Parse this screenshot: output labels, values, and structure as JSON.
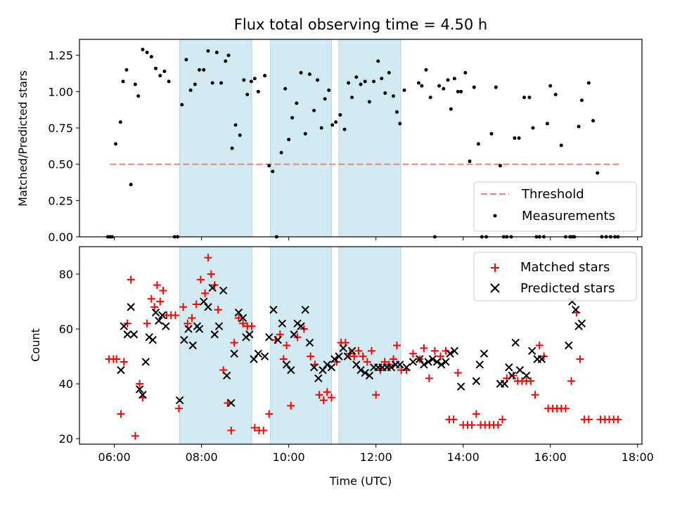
{
  "title": "Flux total observing time = 4.50 h",
  "colors": {
    "band": "#add8e6",
    "threshold": "#f08080",
    "measurements": "#000000",
    "matched": "#ff0000",
    "predicted": "#000000"
  },
  "chart_data": [
    {
      "type": "scatter",
      "panel": "top",
      "xlabel": "",
      "ylabel": "Matched/Predicted stars",
      "xlim": [
        5.2,
        18.1
      ],
      "ylim": [
        0,
        1.36
      ],
      "yticks": [
        0.0,
        0.25,
        0.5,
        0.75,
        1.0,
        1.25
      ],
      "ytick_labels": [
        "0.00",
        "0.25",
        "0.50",
        "0.75",
        "1.00",
        "1.25"
      ],
      "bands": [
        [
          7.5,
          9.15
        ],
        [
          9.58,
          10.98
        ],
        [
          11.15,
          12.57
        ]
      ],
      "threshold": {
        "name": "Threshold",
        "value": 0.5,
        "x": [
          5.9,
          17.6
        ]
      },
      "legend": {
        "position": "lower-right",
        "entries": [
          "Threshold",
          "Measurements"
        ]
      },
      "series": [
        {
          "name": "Measurements",
          "x": [
            5.85,
            5.9,
            5.95,
            6.03,
            6.14,
            6.2,
            6.28,
            6.38,
            6.48,
            6.55,
            6.65,
            6.75,
            6.85,
            6.95,
            7.05,
            7.15,
            7.25,
            7.38,
            7.45,
            7.55,
            7.65,
            7.75,
            7.85,
            7.95,
            8.05,
            8.15,
            8.25,
            8.35,
            8.45,
            8.55,
            8.62,
            8.7,
            8.78,
            8.88,
            8.97,
            9.05,
            9.14,
            9.22,
            9.3,
            9.45,
            9.55,
            9.63,
            9.72,
            9.83,
            9.92,
            10.0,
            10.08,
            10.18,
            10.28,
            10.38,
            10.48,
            10.58,
            10.66,
            10.75,
            10.83,
            10.92,
            11.0,
            11.08,
            11.18,
            11.28,
            11.37,
            11.45,
            11.55,
            11.65,
            11.75,
            11.85,
            11.95,
            12.05,
            12.13,
            12.21,
            12.3,
            12.4,
            12.48,
            12.55,
            12.65,
            12.98,
            13.05,
            13.15,
            13.25,
            13.35,
            13.45,
            13.55,
            13.65,
            13.72,
            13.8,
            13.88,
            13.95,
            14.05,
            14.15,
            14.25,
            14.35,
            14.43,
            14.53,
            14.65,
            14.75,
            14.85,
            14.93,
            15.0,
            15.1,
            15.18,
            15.28,
            15.4,
            15.52,
            15.6,
            15.68,
            15.75,
            15.85,
            15.93,
            16.0,
            16.12,
            16.25,
            16.35,
            16.45,
            16.5,
            16.55,
            16.65,
            16.72,
            16.88,
            16.98,
            17.08,
            17.18,
            17.28,
            17.38,
            17.48,
            17.55
          ],
          "y": [
            0,
            0,
            0,
            0.64,
            0.79,
            1.07,
            1.15,
            0.36,
            1.05,
            0.97,
            1.29,
            1.27,
            1.24,
            1.16,
            1.11,
            1.14,
            1.07,
            0,
            0,
            0.91,
            1.22,
            1.01,
            1.05,
            1.15,
            1.15,
            1.28,
            1.06,
            1.27,
            1.06,
            1.21,
            1.25,
            0.61,
            0.77,
            0.7,
            1.08,
            0.98,
            1.07,
            1.09,
            1.0,
            1.11,
            0.49,
            0.45,
            0,
            0.58,
            1.02,
            0.67,
            0.82,
            0.92,
            1.13,
            0.71,
            1.12,
            0.87,
            1.08,
            0.75,
            0.95,
            1.01,
            0.77,
            0.79,
            0.84,
            0.74,
            1.06,
            0.96,
            1.1,
            1.05,
            1.07,
            0.93,
            1.07,
            1.21,
            1.09,
            0.99,
            1.13,
            0.97,
            0.86,
            0.78,
            1.01,
            1.06,
            1.04,
            1.15,
            0.96,
            0,
            1.04,
            1.02,
            1.08,
            0.88,
            1.09,
            1.0,
            1.0,
            1.13,
            0.52,
            1.03,
            0.64,
            0,
            0,
            0.71,
            1.03,
            0.49,
            0,
            0,
            0,
            0.68,
            0.68,
            0.96,
            0.96,
            0.75,
            0,
            0,
            0,
            0.78,
            1.04,
            0.98,
            0.63,
            0,
            0,
            0,
            0,
            0.76,
            0.94,
            1.06,
            0.8,
            0.44,
            0,
            0,
            0,
            0,
            0
          ]
        }
      ]
    },
    {
      "type": "scatter",
      "panel": "bottom",
      "xlabel": "Time (UTC)",
      "ylabel": "Count",
      "xlim": [
        5.2,
        18.1
      ],
      "ylim": [
        18,
        90
      ],
      "yticks": [
        20,
        40,
        60,
        80
      ],
      "ytick_labels": [
        "20",
        "40",
        "60",
        "80"
      ],
      "xticks": [
        6,
        8,
        10,
        12,
        14,
        16,
        18
      ],
      "xtick_labels": [
        "06:00",
        "08:00",
        "10:00",
        "12:00",
        "14:00",
        "16:00",
        "18:00"
      ],
      "bands": [
        [
          7.5,
          9.15
        ],
        [
          9.58,
          10.98
        ],
        [
          11.15,
          12.57
        ]
      ],
      "legend": {
        "position": "upper-right",
        "entries": [
          "Matched stars",
          "Predicted stars"
        ]
      },
      "series": [
        {
          "name": "Matched stars",
          "marker": "+",
          "x": [
            5.88,
            5.98,
            6.05,
            6.15,
            6.22,
            6.3,
            6.38,
            6.48,
            6.58,
            6.65,
            6.75,
            6.85,
            6.92,
            6.98,
            7.05,
            7.12,
            7.2,
            7.3,
            7.4,
            7.48,
            7.58,
            7.68,
            7.78,
            7.88,
            7.98,
            8.08,
            8.15,
            8.22,
            8.3,
            8.38,
            8.5,
            8.6,
            8.68,
            8.75,
            8.85,
            8.95,
            9.05,
            9.15,
            9.22,
            9.32,
            9.42,
            9.55,
            9.7,
            9.8,
            9.88,
            9.95,
            10.05,
            10.2,
            10.35,
            10.5,
            10.6,
            10.7,
            10.8,
            10.88,
            10.98,
            11.1,
            11.2,
            11.3,
            11.4,
            11.5,
            11.6,
            11.7,
            11.8,
            11.9,
            12.0,
            12.1,
            12.2,
            12.3,
            12.4,
            12.48,
            12.58,
            12.7,
            12.85,
            13.0,
            13.1,
            13.22,
            13.35,
            13.48,
            13.6,
            13.68,
            13.78,
            13.88,
            14.0,
            14.1,
            14.2,
            14.3,
            14.4,
            14.5,
            14.6,
            14.7,
            14.8,
            14.9,
            15.0,
            15.15,
            15.25,
            15.35,
            15.45,
            15.55,
            15.65,
            15.75,
            15.85,
            15.95,
            16.05,
            16.15,
            16.25,
            16.35,
            16.48,
            16.6,
            16.68,
            16.78,
            16.88,
            17.15,
            17.25,
            17.35,
            17.45,
            17.55
          ],
          "y": [
            49,
            49,
            49,
            29,
            48,
            62,
            78,
            21,
            40,
            35,
            62,
            71,
            68,
            76,
            70,
            74,
            65,
            65,
            65,
            31,
            68,
            62,
            64,
            69,
            78,
            73,
            86,
            80,
            76,
            67,
            45,
            33,
            23,
            55,
            64,
            62,
            61,
            61,
            24,
            23,
            23,
            29,
            56,
            58,
            49,
            54,
            32,
            57,
            60,
            50,
            47,
            36,
            34,
            37,
            35,
            48,
            55,
            55,
            51,
            50,
            52,
            50,
            48,
            52,
            36,
            45,
            48,
            47,
            49,
            54,
            45,
            45,
            51,
            49,
            53,
            42,
            52,
            50,
            52,
            27,
            27,
            44,
            25,
            25,
            25,
            29,
            25,
            25,
            25,
            25,
            25,
            27,
            42,
            43,
            41,
            41,
            41,
            41,
            36,
            54,
            50,
            31,
            31,
            31,
            31,
            31,
            41,
            66,
            49,
            27,
            27,
            27,
            27,
            27,
            27,
            27
          ]
        },
        {
          "name": "Predicted stars",
          "marker": "x",
          "x": [
            6.15,
            6.22,
            6.3,
            6.38,
            6.45,
            6.58,
            6.65,
            6.72,
            6.8,
            6.88,
            6.95,
            7.02,
            7.1,
            7.18,
            7.5,
            7.6,
            7.7,
            7.8,
            7.9,
            7.95,
            8.05,
            8.15,
            8.25,
            8.3,
            8.4,
            8.5,
            8.58,
            8.68,
            8.75,
            8.85,
            8.95,
            9.02,
            9.1,
            9.2,
            9.3,
            9.45,
            9.55,
            9.65,
            9.75,
            9.85,
            9.95,
            10.05,
            10.12,
            10.2,
            10.28,
            10.38,
            10.48,
            10.58,
            10.68,
            10.78,
            10.88,
            10.98,
            11.05,
            11.15,
            11.25,
            11.35,
            11.45,
            11.55,
            11.65,
            11.75,
            11.85,
            11.95,
            12.05,
            12.15,
            12.25,
            12.35,
            12.45,
            12.55,
            12.7,
            12.85,
            13.0,
            13.1,
            13.2,
            13.3,
            13.4,
            13.5,
            13.6,
            13.7,
            13.8,
            13.95,
            14.3,
            14.38,
            14.48,
            14.85,
            14.95,
            15.05,
            15.12,
            15.2,
            15.3,
            15.45,
            15.58,
            15.7,
            15.8,
            16.42,
            16.5,
            16.58,
            16.65,
            16.72
          ],
          "y": [
            45,
            61,
            58,
            68,
            58,
            38,
            36,
            48,
            57,
            56,
            66,
            63,
            65,
            61,
            34,
            56,
            60,
            54,
            61,
            60,
            70,
            68,
            75,
            58,
            61,
            74,
            43,
            33,
            51,
            66,
            64,
            57,
            58,
            49,
            51,
            50,
            57,
            67,
            56,
            62,
            47,
            45,
            58,
            62,
            61,
            67,
            55,
            46,
            42,
            45,
            47,
            46,
            49,
            50,
            53,
            50,
            52,
            47,
            45,
            44,
            43,
            46,
            46,
            46,
            46,
            46,
            47,
            47,
            46,
            48,
            49,
            47,
            48,
            49,
            48,
            47,
            48,
            51,
            52,
            39,
            41,
            47,
            51,
            40,
            40,
            46,
            43,
            55,
            45,
            43,
            52,
            49,
            49,
            54,
            70,
            67,
            61,
            62
          ]
        }
      ]
    }
  ]
}
